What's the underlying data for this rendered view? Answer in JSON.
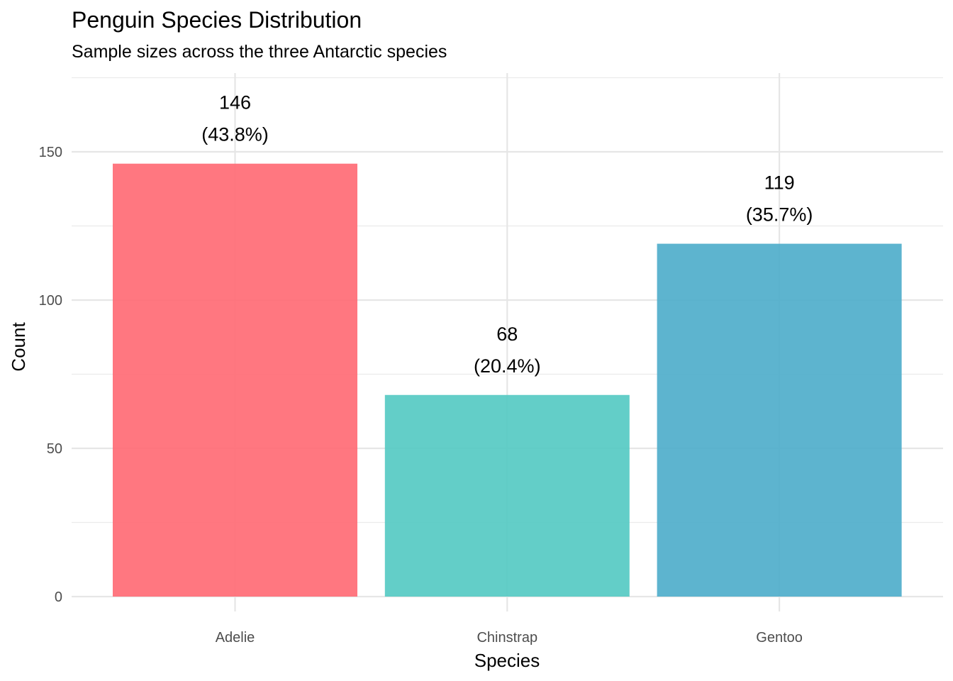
{
  "chart_data": {
    "type": "bar",
    "title": "Penguin Species Distribution",
    "subtitle": "Sample sizes across the three Antarctic species",
    "xlabel": "Species",
    "ylabel": "Count",
    "categories": [
      "Adelie",
      "Chinstrap",
      "Gentoo"
    ],
    "values": [
      146,
      68,
      119
    ],
    "value_labels": [
      "146",
      "68",
      "119"
    ],
    "percent_labels": [
      "(43.8%)",
      "(20.4%)",
      "(35.7%)"
    ],
    "colors": [
      "#FF6B75",
      "#56CAC3",
      "#4FAECB"
    ],
    "ylim": [
      0,
      175
    ],
    "yticks": [
      0,
      50,
      100,
      150
    ],
    "ytick_labels": [
      "0",
      "50",
      "100",
      "150"
    ],
    "grid": true,
    "legend": "none"
  }
}
